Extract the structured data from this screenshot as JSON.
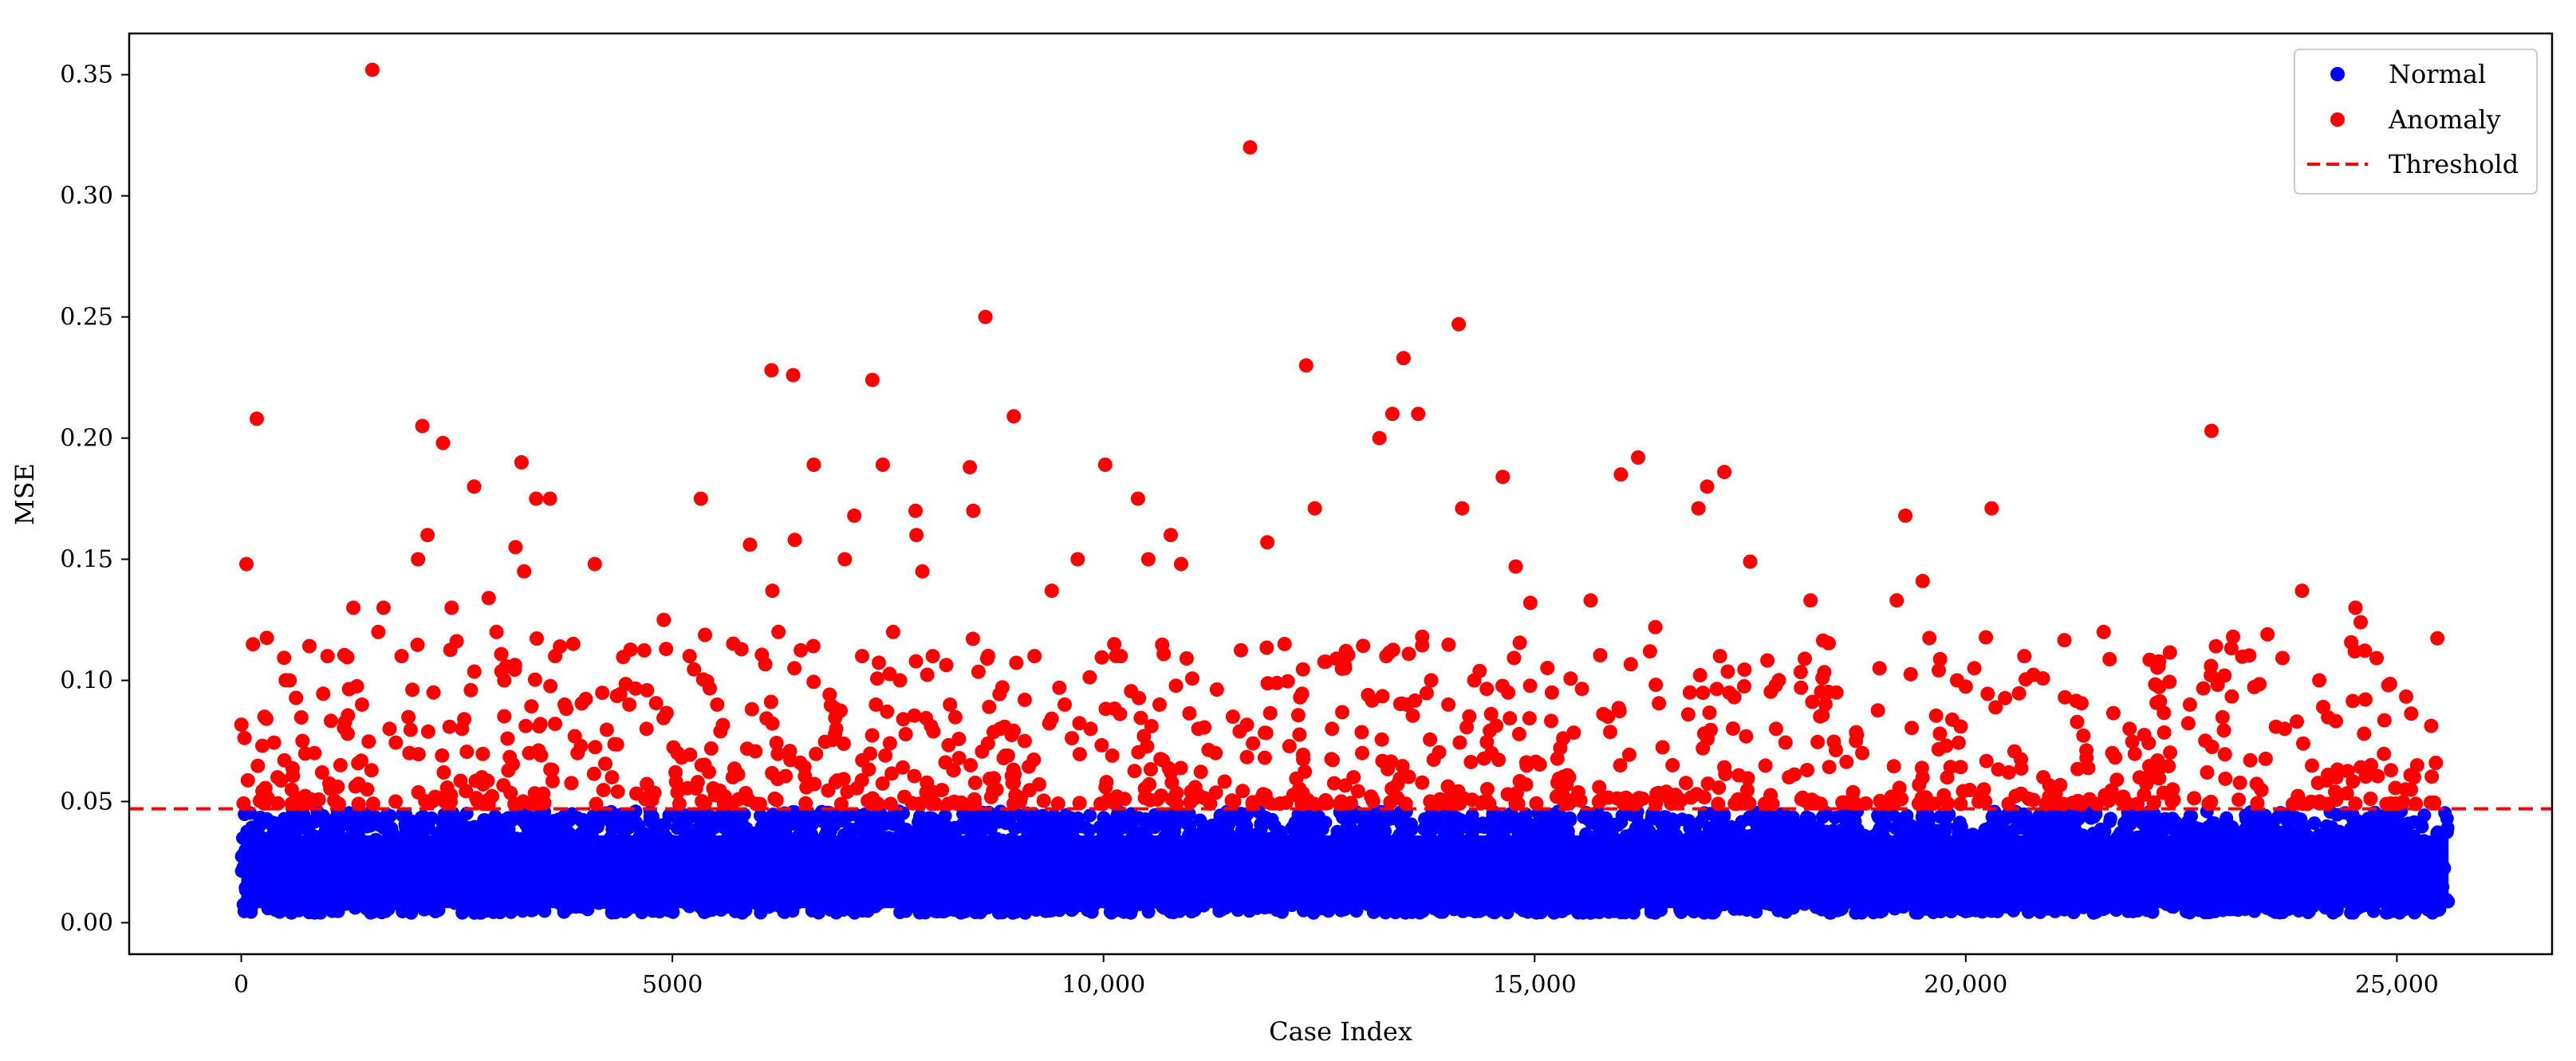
{
  "chart_data": {
    "type": "scatter",
    "title": "",
    "xlabel": "Case Index",
    "ylabel": "MSE",
    "xlim": [
      -1300,
      26800
    ],
    "ylim": [
      -0.013,
      0.367
    ],
    "xticks": [
      0,
      5000,
      10000,
      15000,
      20000,
      25000
    ],
    "xtick_labels": [
      "0",
      "5000",
      "10,000",
      "15,000",
      "20,000",
      "25,000"
    ],
    "yticks": [
      0.0,
      0.05,
      0.1,
      0.15,
      0.2,
      0.25,
      0.3,
      0.35
    ],
    "ytick_labels": [
      "0.00",
      "0.05",
      "0.10",
      "0.15",
      "0.20",
      "0.25",
      "0.30",
      "0.35"
    ],
    "grid": false,
    "legend_position": "top-right",
    "threshold": 0.047,
    "colors": {
      "normal": "#0000ff",
      "anomaly": "#ff0000",
      "threshold": "#ff0000"
    },
    "normal_summary": {
      "x_range": [
        0,
        25600
      ],
      "y_range": [
        0.004,
        0.046
      ],
      "count_approx": 24000
    },
    "series": [
      {
        "name": "Normal",
        "kind": "points",
        "color": "#0000ff"
      },
      {
        "name": "Anomaly",
        "kind": "points",
        "color": "#ff0000",
        "x": [
          60,
          180,
          270,
          420,
          560,
          710,
          850,
          1000,
          1150,
          1300,
          1400,
          1460,
          1520,
          1590,
          1650,
          1720,
          1790,
          1860,
          1950,
          2050,
          2100,
          2160,
          2230,
          2340,
          2440,
          2560,
          2700,
          2790,
          2870,
          2960,
          3050,
          3180,
          3250,
          3280,
          3340,
          3420,
          3470,
          3580,
          3640,
          3750,
          3900,
          4100,
          4300,
          4500,
          4700,
          4900,
          5060,
          5200,
          5330,
          5520,
          5700,
          5900,
          6150,
          6160,
          6230,
          6400,
          6420,
          6640,
          6900,
          7000,
          7110,
          7200,
          7320,
          7360,
          7440,
          7560,
          7640,
          7820,
          7830,
          7900,
          8020,
          8220,
          8450,
          8490,
          8630,
          8800,
          8960,
          9200,
          9400,
          9550,
          9700,
          9850,
          10020,
          10200,
          10400,
          10520,
          10650,
          10780,
          10900,
          11100,
          11300,
          11500,
          11700,
          11900,
          12100,
          12350,
          12450,
          12650,
          12800,
          12900,
          13000,
          13200,
          13280,
          13350,
          13480,
          13520,
          13650,
          13800,
          14000,
          14120,
          14160,
          14300,
          14500,
          14630,
          14780,
          14950,
          15200,
          15400,
          15650,
          15850,
          16000,
          16200,
          16400,
          16600,
          16800,
          16900,
          17000,
          17150,
          17200,
          17500,
          17800,
          17950,
          18200,
          18500,
          18800,
          19000,
          19200,
          19300,
          19500,
          19700,
          19900,
          20100,
          20300,
          20500,
          20680,
          20900,
          21150,
          21400,
          21600,
          21700,
          21900,
          22200,
          22400,
          22600,
          22800,
          22850,
          23000,
          23100,
          23300,
          23500,
          23700,
          23840,
          23900,
          24100,
          24300,
          24520,
          24580,
          24620,
          24700,
          24900,
          25100,
          25200
        ],
        "y": [
          0.148,
          0.208,
          0.085,
          0.06,
          0.1,
          0.075,
          0.07,
          0.11,
          0.065,
          0.13,
          0.09,
          0.055,
          0.352,
          0.12,
          0.13,
          0.08,
          0.05,
          0.11,
          0.07,
          0.15,
          0.205,
          0.16,
          0.095,
          0.198,
          0.13,
          0.08,
          0.18,
          0.06,
          0.134,
          0.12,
          0.1,
          0.155,
          0.19,
          0.145,
          0.07,
          0.175,
          0.082,
          0.175,
          0.11,
          0.09,
          0.07,
          0.148,
          0.06,
          0.09,
          0.08,
          0.125,
          0.07,
          0.11,
          0.175,
          0.09,
          0.06,
          0.156,
          0.228,
          0.137,
          0.12,
          0.226,
          0.158,
          0.189,
          0.08,
          0.15,
          0.168,
          0.11,
          0.224,
          0.09,
          0.189,
          0.12,
          0.1,
          0.17,
          0.16,
          0.145,
          0.11,
          0.09,
          0.188,
          0.17,
          0.25,
          0.08,
          0.209,
          0.11,
          0.137,
          0.09,
          0.15,
          0.08,
          0.189,
          0.11,
          0.175,
          0.15,
          0.09,
          0.16,
          0.148,
          0.08,
          0.07,
          0.085,
          0.32,
          0.157,
          0.115,
          0.23,
          0.171,
          0.08,
          0.105,
          0.06,
          0.07,
          0.2,
          0.11,
          0.21,
          0.233,
          0.09,
          0.21,
          0.1,
          0.09,
          0.247,
          0.171,
          0.1,
          0.07,
          0.184,
          0.147,
          0.132,
          0.095,
          0.06,
          0.133,
          0.085,
          0.185,
          0.192,
          0.122,
          0.065,
          0.095,
          0.171,
          0.18,
          0.11,
          0.186,
          0.149,
          0.08,
          0.06,
          0.133,
          0.095,
          0.07,
          0.105,
          0.133,
          0.168,
          0.141,
          0.078,
          0.1,
          0.105,
          0.171,
          0.062,
          0.11,
          0.06,
          0.093,
          0.068,
          0.12,
          0.07,
          0.08,
          0.06,
          0.055,
          0.09,
          0.062,
          0.203,
          0.102,
          0.118,
          0.067,
          0.119,
          0.08,
          0.083,
          0.137,
          0.1,
          0.06,
          0.13,
          0.124,
          0.078,
          0.065,
          0.098,
          0.055,
          0.06
        ]
      },
      {
        "name": "Threshold",
        "kind": "dashed-line",
        "color": "#ff0000"
      }
    ]
  }
}
